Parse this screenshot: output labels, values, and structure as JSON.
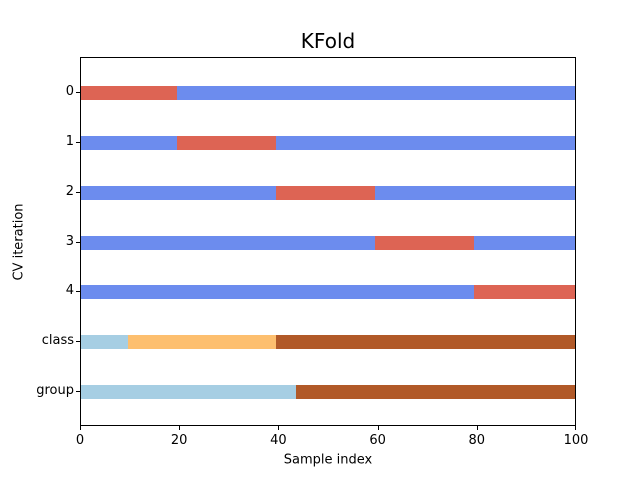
{
  "chart_data": {
    "type": "bar",
    "subtype": "horizontal-stacked-cv-indicator",
    "title": "KFold",
    "xlabel": "Sample index",
    "ylabel": "CV iteration",
    "xlim": [
      0,
      100
    ],
    "x_ticks": [
      0,
      20,
      40,
      60,
      80,
      100
    ],
    "y_tick_labels": [
      "0",
      "1",
      "2",
      "3",
      "4",
      "class",
      "group"
    ],
    "grid": false,
    "legend": "none",
    "colors": {
      "train": "#6c8cee",
      "test": "#dd6454",
      "class0": "#a6cee3",
      "class1": "#fdbf6f",
      "class2": "#b15928",
      "group0": "#a6cee3",
      "group1": "#b15928"
    },
    "rows": [
      {
        "label": "0",
        "segments": [
          {
            "start": 0,
            "end": 20,
            "role": "test"
          },
          {
            "start": 20,
            "end": 100,
            "role": "train"
          }
        ]
      },
      {
        "label": "1",
        "segments": [
          {
            "start": 0,
            "end": 20,
            "role": "train"
          },
          {
            "start": 20,
            "end": 40,
            "role": "test"
          },
          {
            "start": 40,
            "end": 100,
            "role": "train"
          }
        ]
      },
      {
        "label": "2",
        "segments": [
          {
            "start": 0,
            "end": 40,
            "role": "train"
          },
          {
            "start": 40,
            "end": 60,
            "role": "test"
          },
          {
            "start": 60,
            "end": 100,
            "role": "train"
          }
        ]
      },
      {
        "label": "3",
        "segments": [
          {
            "start": 0,
            "end": 60,
            "role": "train"
          },
          {
            "start": 60,
            "end": 80,
            "role": "test"
          },
          {
            "start": 80,
            "end": 100,
            "role": "train"
          }
        ]
      },
      {
        "label": "4",
        "segments": [
          {
            "start": 0,
            "end": 80,
            "role": "train"
          },
          {
            "start": 80,
            "end": 100,
            "role": "test"
          }
        ]
      },
      {
        "label": "class",
        "segments": [
          {
            "start": 0,
            "end": 10,
            "role": "class0"
          },
          {
            "start": 10,
            "end": 40,
            "role": "class1"
          },
          {
            "start": 40,
            "end": 100,
            "role": "class2"
          }
        ]
      },
      {
        "label": "group",
        "segments": [
          {
            "start": 0,
            "end": 44,
            "role": "group0"
          },
          {
            "start": 44,
            "end": 100,
            "role": "group1"
          }
        ]
      }
    ]
  }
}
